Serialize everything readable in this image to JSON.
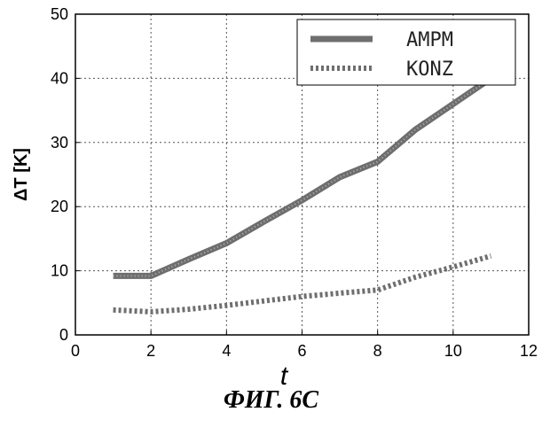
{
  "figure": {
    "caption": "ФИГ. 6C"
  },
  "chart_data": {
    "type": "line",
    "title": "",
    "xlabel": "t",
    "ylabel": "ΔT [K]",
    "xlim": [
      0,
      12
    ],
    "ylim": [
      0,
      50
    ],
    "xticks": [
      "0",
      "2",
      "4",
      "6",
      "8",
      "10",
      "12"
    ],
    "yticks": [
      "0",
      "10",
      "20",
      "30",
      "40",
      "50"
    ],
    "grid": true,
    "legend_position": "top-right",
    "series": [
      {
        "name": "AMPM",
        "style": "solid",
        "color": "#6e6e6e",
        "x": [
          1,
          2,
          3,
          4,
          5,
          6,
          7,
          8,
          9,
          10,
          11
        ],
        "y": [
          9.2,
          9.2,
          11.8,
          14.3,
          17.7,
          21.0,
          24.6,
          27.0,
          32.0,
          36.0,
          40.0
        ]
      },
      {
        "name": "KONZ",
        "style": "dotted",
        "color": "#6e6e6e",
        "x": [
          1,
          2,
          3,
          4,
          5,
          6,
          7,
          8,
          9,
          10,
          11
        ],
        "y": [
          3.9,
          3.6,
          4.0,
          4.6,
          5.3,
          6.0,
          6.5,
          7.0,
          9.0,
          10.6,
          12.3
        ]
      }
    ]
  }
}
